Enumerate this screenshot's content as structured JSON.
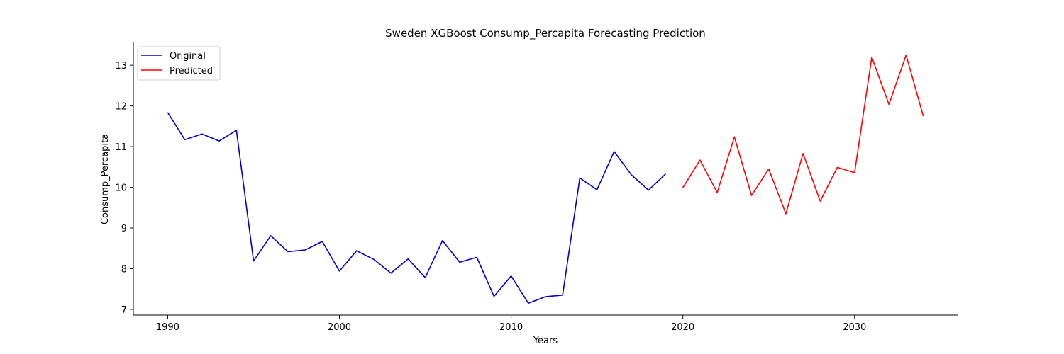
{
  "chart_data": {
    "type": "line",
    "title": "Sweden XGBoost Consump_Percapita Forecasting Prediction",
    "xlabel": "Years",
    "ylabel": "Consump_Percapita",
    "xlim": [
      1988,
      2036
    ],
    "ylim": [
      6.86,
      13.56
    ],
    "xticks": [
      1990,
      2000,
      2010,
      2020,
      2030
    ],
    "yticks": [
      7,
      8,
      9,
      10,
      11,
      12,
      13
    ],
    "grid": false,
    "legend_position": "upper-left",
    "series": [
      {
        "name": "Original",
        "color": "#0000cc",
        "x": [
          1990,
          1991,
          1992,
          1993,
          1994,
          1995,
          1996,
          1997,
          1998,
          1999,
          2000,
          2001,
          2002,
          2003,
          2004,
          2005,
          2006,
          2007,
          2008,
          2009,
          2010,
          2011,
          2012,
          2013,
          2014,
          2015,
          2016,
          2017,
          2018,
          2019
        ],
        "y": [
          11.84,
          11.17,
          11.31,
          11.14,
          11.4,
          8.19,
          8.81,
          8.42,
          8.46,
          8.67,
          7.94,
          8.44,
          8.23,
          7.89,
          8.24,
          7.78,
          8.69,
          8.16,
          8.28,
          7.32,
          7.82,
          7.15,
          7.31,
          7.35,
          10.23,
          9.94,
          10.88,
          10.31,
          9.93,
          10.33
        ]
      },
      {
        "name": "Predicted",
        "color": "#ff0000",
        "x": [
          2020,
          2021,
          2022,
          2023,
          2024,
          2025,
          2026,
          2027,
          2028,
          2029,
          2030,
          2031,
          2032,
          2033,
          2034
        ],
        "y": [
          9.99,
          10.67,
          9.87,
          11.24,
          9.8,
          10.45,
          9.35,
          10.83,
          9.66,
          10.49,
          10.36,
          13.2,
          12.04,
          13.25,
          11.75
        ]
      }
    ]
  }
}
